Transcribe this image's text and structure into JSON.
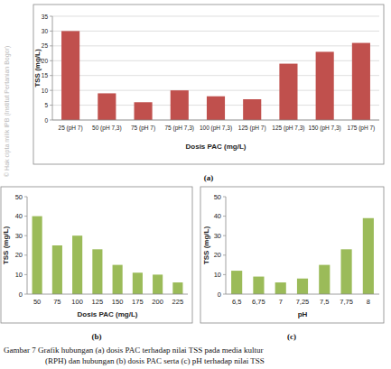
{
  "chart_data": [
    {
      "type": "bar",
      "x_label": "Dosis PAC (mg/L)",
      "y_label": "TSS (mg/L)",
      "categories": [
        "25 (pH 7)",
        "50 (pH 7,3)",
        "75 (pH 7)",
        "75 (pH 7,3)",
        "100 (pH 7,3)",
        "125 (pH 7)",
        "125 (pH 7,3)",
        "150 (pH 7,3)",
        "175 (pH 7)"
      ],
      "values": [
        30,
        9,
        6,
        10,
        8,
        7,
        19,
        23,
        26
      ],
      "color": "#c0504d",
      "ylim": [
        0,
        35
      ],
      "yticks": [
        0,
        5,
        10,
        15,
        20,
        25,
        30,
        35
      ],
      "grid": true
    },
    {
      "type": "bar",
      "x_label": "Dosis PAC (mg/L)",
      "y_label": "TSS (mg/L)",
      "categories": [
        "50",
        "75",
        "100",
        "125",
        "150",
        "175",
        "200",
        "225"
      ],
      "values": [
        40,
        25,
        30,
        23,
        15,
        11,
        10,
        6
      ],
      "color": "#9bbb59",
      "ylim": [
        0,
        50
      ],
      "yticks": [
        0,
        10,
        20,
        30,
        40,
        50
      ],
      "grid": false
    },
    {
      "type": "bar",
      "x_label": "pH",
      "y_label": "TSS (mg/L)",
      "categories": [
        "6,5",
        "6,75",
        "7",
        "7,25",
        "7,5",
        "7,75",
        "8"
      ],
      "values": [
        12,
        9,
        6,
        8,
        15,
        23,
        39
      ],
      "color": "#9bbb59",
      "ylim": [
        0,
        50
      ],
      "yticks": [
        0,
        10,
        20,
        30,
        40,
        50
      ],
      "grid": false
    }
  ],
  "panel_labels": [
    "(a)",
    "(b)",
    "(c)"
  ],
  "caption_lines": [
    "Gambar 7 Grafik hubungan (a) dosis PAC terhadap nilai TSS pada media kultur",
    "(RPH) dan hubungan (b) dosis PAC serta (c) pH terhadap nilai TSS"
  ],
  "watermark": "© Hak cipta milik IPB (Institut Pertanian Bogor)"
}
